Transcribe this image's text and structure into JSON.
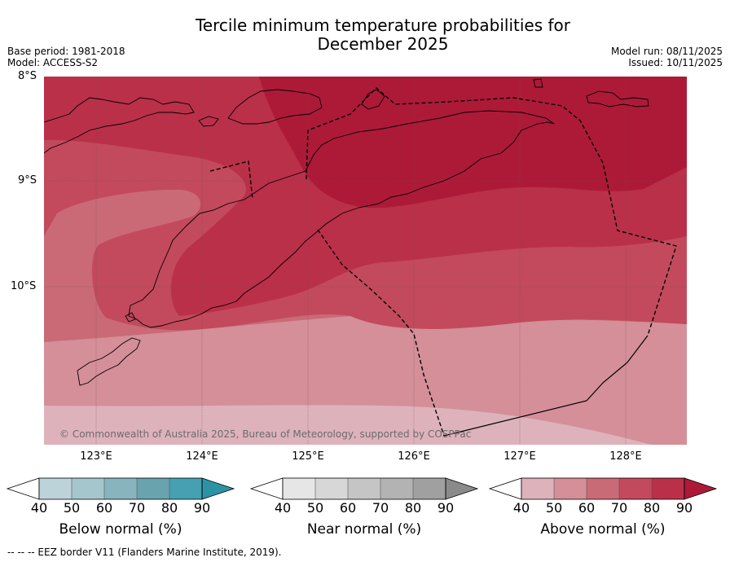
{
  "title_line1": "Tercile minimum temperature probabilities for",
  "title_line2": "December 2025",
  "base_period": "Base period: 1981-2018",
  "model": "Model: ACCESS-S2",
  "model_run": "Model run: 08/11/2025",
  "issued": "Issued: 10/11/2025",
  "map": {
    "lat_labels": [
      "8°S",
      "9°S",
      "10°S"
    ],
    "lon_labels": [
      "123°E",
      "124°E",
      "125°E",
      "126°E",
      "127°E",
      "128°E"
    ],
    "copyright": "© Commonwealth of Australia 2025, Bureau of Meteorology, supported by COSPPac",
    "fill_colors": {
      "40": "#deb2bb",
      "50": "#d48f99",
      "60": "#ca6a77",
      "70": "#c24a5c",
      "80": "#ba3049",
      "90": "#ad1a38"
    }
  },
  "colorbars": [
    {
      "label": "Below normal (%)",
      "ticks": [
        "40",
        "50",
        "60",
        "70",
        "80",
        "90"
      ],
      "colors": [
        "#bcd3d9",
        "#a5c6cc",
        "#88b4bd",
        "#68a3ae",
        "#45a0b1",
        "#2c93a5"
      ]
    },
    {
      "label": "Near normal (%)",
      "ticks": [
        "40",
        "50",
        "60",
        "70",
        "80",
        "90"
      ],
      "colors": [
        "#e6e6e6",
        "#d7d7d7",
        "#c5c5c5",
        "#b3b3b3",
        "#a0a0a0",
        "#8a8a8a"
      ]
    },
    {
      "label": "Above normal (%)",
      "ticks": [
        "40",
        "50",
        "60",
        "70",
        "80",
        "90"
      ],
      "colors": [
        "#deb2bb",
        "#d48f99",
        "#ca6a77",
        "#c24a5c",
        "#ba3049",
        "#ad1a38"
      ]
    }
  ],
  "footnote": "-- -- -- EEZ border V11 (Flanders Marine Institute, 2019)."
}
